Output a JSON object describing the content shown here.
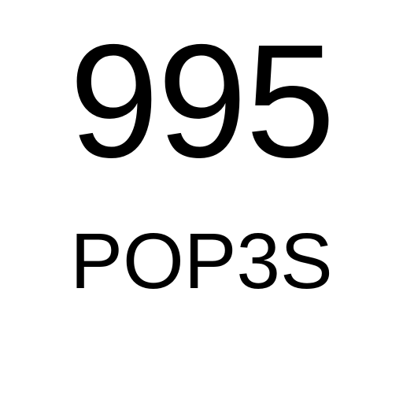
{
  "port": {
    "number": "995",
    "protocol": "POP3S"
  },
  "colors": {
    "background": "#ffffff",
    "text": "#000000"
  }
}
